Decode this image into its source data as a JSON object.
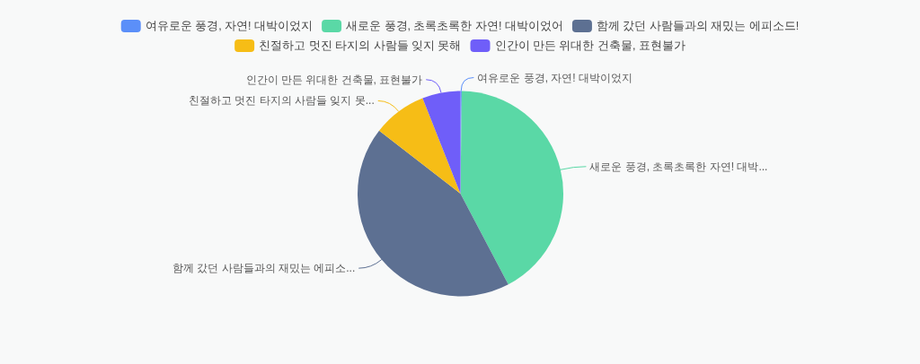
{
  "chart_data": {
    "type": "pie",
    "legend": "top",
    "categories": [
      "여유로운 풍경, 자연! 대박이었지",
      "새로운 풍경, 초록초록한 자연! 대박이었어",
      "함께 갔던 사람들과의 재밌는 에피소드!",
      "친절하고 멋진 타지의 사람들 잊지 못해",
      "인간이 만든 위대한 건축물, 표현불가"
    ],
    "values": [
      0.2,
      42.1,
      43.2,
      8.5,
      6.0
    ],
    "colors": [
      "#5b8ff9",
      "#5ad8a6",
      "#5d7092",
      "#f6bd16",
      "#6f5ef9"
    ],
    "value_labels": [
      "여유로운 풍경, 자연! 대박이었지",
      "새로운 풍경, 초록초록한 자연! 대박...",
      "함께 갔던 사람들과의 재밌는 에피소...",
      "친절하고 멋진 타지의 사람들 잊지 못...",
      "인간이 만든 위대한 건축물, 표현불가"
    ]
  }
}
